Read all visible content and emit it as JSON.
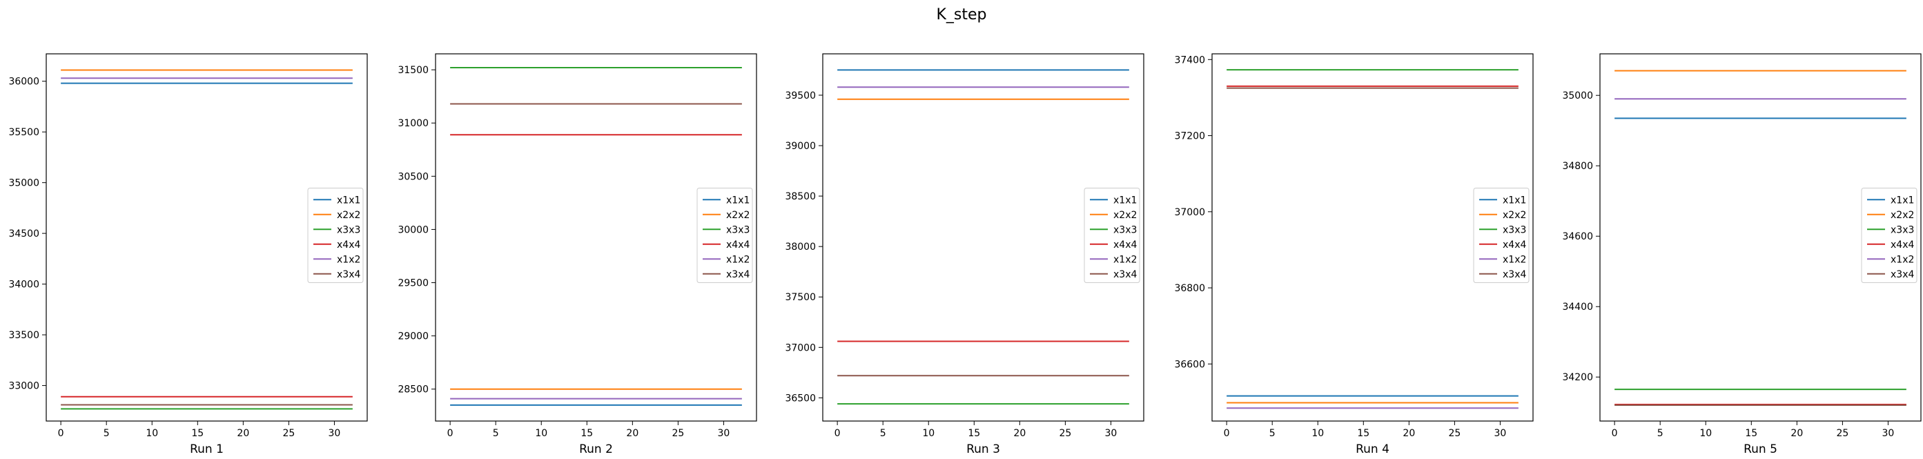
{
  "figure": {
    "suptitle": "K_step"
  },
  "chart_data": [
    {
      "type": "line",
      "xlabel": "Run 1",
      "xlim": [
        -1.6,
        33.6
      ],
      "ylim": [
        32650,
        36270
      ],
      "xticks": [
        0,
        5,
        10,
        15,
        20,
        25,
        30
      ],
      "yticks": [
        33000,
        33500,
        34000,
        34500,
        35000,
        35500,
        36000
      ],
      "x": [
        0,
        32
      ],
      "legend_position": "right",
      "series": [
        {
          "name": "x1x1",
          "color": "#1f77b4",
          "values": [
            35980,
            35980
          ]
        },
        {
          "name": "x2x2",
          "color": "#ff7f0e",
          "values": [
            36110,
            36110
          ]
        },
        {
          "name": "x3x3",
          "color": "#2ca02c",
          "values": [
            32770,
            32770
          ]
        },
        {
          "name": "x4x4",
          "color": "#d62728",
          "values": [
            32890,
            32890
          ]
        },
        {
          "name": "x1x2",
          "color": "#9467bd",
          "values": [
            36030,
            36030
          ]
        },
        {
          "name": "x3x4",
          "color": "#8c564b",
          "values": [
            32810,
            32810
          ]
        }
      ]
    },
    {
      "type": "line",
      "xlabel": "Run 2",
      "xlim": [
        -1.6,
        33.6
      ],
      "ylim": [
        28200,
        31650
      ],
      "xticks": [
        0,
        5,
        10,
        15,
        20,
        25,
        30
      ],
      "yticks": [
        28500,
        29000,
        29500,
        30000,
        30500,
        31000,
        31500
      ],
      "x": [
        0,
        32
      ],
      "legend_position": "right",
      "series": [
        {
          "name": "x1x1",
          "color": "#1f77b4",
          "values": [
            28350,
            28350
          ]
        },
        {
          "name": "x2x2",
          "color": "#ff7f0e",
          "values": [
            28500,
            28500
          ]
        },
        {
          "name": "x3x3",
          "color": "#2ca02c",
          "values": [
            31520,
            31520
          ]
        },
        {
          "name": "x4x4",
          "color": "#d62728",
          "values": [
            30890,
            30890
          ]
        },
        {
          "name": "x1x2",
          "color": "#9467bd",
          "values": [
            28410,
            28410
          ]
        },
        {
          "name": "x3x4",
          "color": "#8c564b",
          "values": [
            31180,
            31180
          ]
        }
      ]
    },
    {
      "type": "line",
      "xlabel": "Run 3",
      "xlim": [
        -1.6,
        33.6
      ],
      "ylim": [
        36270,
        39910
      ],
      "xticks": [
        0,
        5,
        10,
        15,
        20,
        25,
        30
      ],
      "yticks": [
        36500,
        37000,
        37500,
        38000,
        38500,
        39000,
        39500
      ],
      "x": [
        0,
        32
      ],
      "legend_position": "right",
      "series": [
        {
          "name": "x1x1",
          "color": "#1f77b4",
          "values": [
            39750,
            39750
          ]
        },
        {
          "name": "x2x2",
          "color": "#ff7f0e",
          "values": [
            39460,
            39460
          ]
        },
        {
          "name": "x3x3",
          "color": "#2ca02c",
          "values": [
            36440,
            36440
          ]
        },
        {
          "name": "x4x4",
          "color": "#d62728",
          "values": [
            37060,
            37060
          ]
        },
        {
          "name": "x1x2",
          "color": "#9467bd",
          "values": [
            39580,
            39580
          ]
        },
        {
          "name": "x3x4",
          "color": "#8c564b",
          "values": [
            36720,
            36720
          ]
        }
      ]
    },
    {
      "type": "line",
      "xlabel": "Run 4",
      "xlim": [
        -1.6,
        33.6
      ],
      "ylim": [
        36450,
        37415
      ],
      "xticks": [
        0,
        5,
        10,
        15,
        20,
        25,
        30
      ],
      "yticks": [
        36600,
        36800,
        37000,
        37200,
        37400
      ],
      "x": [
        0,
        32
      ],
      "legend_position": "right",
      "series": [
        {
          "name": "x1x1",
          "color": "#1f77b4",
          "values": [
            36516,
            36516
          ]
        },
        {
          "name": "x2x2",
          "color": "#ff7f0e",
          "values": [
            36498,
            36498
          ]
        },
        {
          "name": "x3x3",
          "color": "#2ca02c",
          "values": [
            37373,
            37373
          ]
        },
        {
          "name": "x4x4",
          "color": "#d62728",
          "values": [
            37330,
            37330
          ]
        },
        {
          "name": "x1x2",
          "color": "#9467bd",
          "values": [
            36484,
            36484
          ]
        },
        {
          "name": "x3x4",
          "color": "#8c564b",
          "values": [
            37325,
            37325
          ]
        }
      ]
    },
    {
      "type": "line",
      "xlabel": "Run 5",
      "xlim": [
        -1.6,
        33.6
      ],
      "ylim": [
        34075,
        35118
      ],
      "xticks": [
        0,
        5,
        10,
        15,
        20,
        25,
        30
      ],
      "yticks": [
        34200,
        34400,
        34600,
        34800,
        35000
      ],
      "x": [
        0,
        32
      ],
      "legend_position": "right",
      "series": [
        {
          "name": "x1x1",
          "color": "#1f77b4",
          "values": [
            34935,
            34935
          ]
        },
        {
          "name": "x2x2",
          "color": "#ff7f0e",
          "values": [
            35070,
            35070
          ]
        },
        {
          "name": "x3x3",
          "color": "#2ca02c",
          "values": [
            34165,
            34165
          ]
        },
        {
          "name": "x4x4",
          "color": "#d62728",
          "values": [
            34122,
            34122
          ]
        },
        {
          "name": "x1x2",
          "color": "#9467bd",
          "values": [
            34990,
            34990
          ]
        },
        {
          "name": "x3x4",
          "color": "#8c564b",
          "values": [
            34120,
            34120
          ]
        }
      ]
    }
  ]
}
